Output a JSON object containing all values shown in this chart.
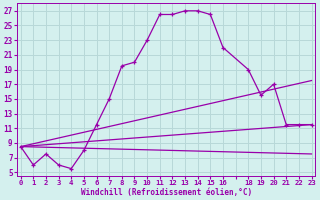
{
  "xlabel": "Windchill (Refroidissement éolien,°C)",
  "background_color": "#d4f0ee",
  "grid_color": "#b8d8d8",
  "line_color": "#9900aa",
  "x_ticks_pos": [
    0,
    1,
    2,
    3,
    4,
    5,
    6,
    7,
    8,
    9,
    10,
    11,
    12,
    13,
    14,
    15,
    16,
    17,
    18,
    19,
    20,
    21,
    22,
    23
  ],
  "x_tick_labels": [
    "0",
    "1",
    "2",
    "3",
    "4",
    "5",
    "6",
    "7",
    "8",
    "9",
    "10",
    "11",
    "12",
    "13",
    "14",
    "15",
    "16",
    "",
    "18",
    "19",
    "20",
    "21",
    "22",
    "23"
  ],
  "y_ticks": [
    5,
    7,
    9,
    11,
    13,
    15,
    17,
    19,
    21,
    23,
    25,
    27
  ],
  "xlim": [
    -0.3,
    23.3
  ],
  "ylim": [
    4.5,
    28
  ],
  "series1_x": [
    0,
    1,
    2,
    3,
    4,
    5,
    6,
    7,
    8,
    9,
    10,
    11,
    12,
    13,
    14,
    15,
    16,
    18,
    19,
    20,
    21,
    22,
    23
  ],
  "series1_y": [
    8.5,
    6.0,
    7.5,
    6.0,
    5.5,
    8.0,
    11.5,
    15.0,
    19.5,
    20.0,
    23.0,
    26.5,
    26.5,
    27.0,
    27.0,
    26.5,
    22.0,
    19.0,
    15.5,
    17.0,
    11.5,
    11.5,
    11.5
  ],
  "series2_x": [
    0,
    23
  ],
  "series2_y": [
    8.5,
    7.5
  ],
  "series3_x": [
    0,
    23
  ],
  "series3_y": [
    8.5,
    11.5
  ],
  "series4_x": [
    0,
    23
  ],
  "series4_y": [
    8.5,
    17.5
  ]
}
